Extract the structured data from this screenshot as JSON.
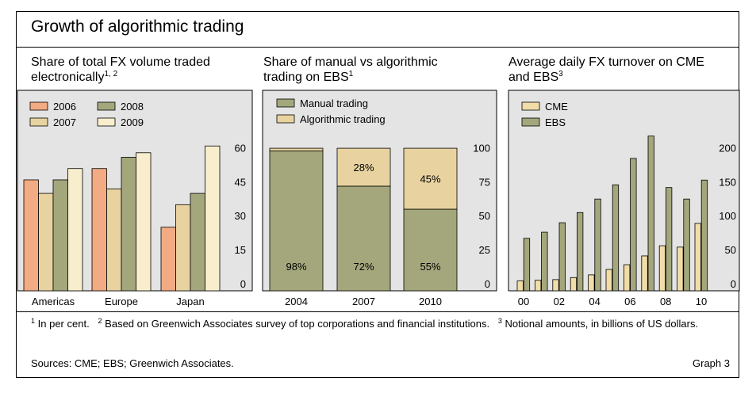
{
  "title": "Growth of algorithmic trading",
  "colors": {
    "c2006": "#f2ab82",
    "c2007": "#e8d3a0",
    "c2008": "#a4a77c",
    "c2009": "#f8eecd",
    "manual": "#a4a77c",
    "algo": "#e8d3a0",
    "cme": "#f0dda8",
    "ebs": "#a4a77c",
    "panel_bg": "#e4e4e4"
  },
  "panels": [
    {
      "title": "Share of total FX volume traded electronically",
      "title_line1": "Share of total FX volume traded",
      "title_line2": "electronically",
      "sup": "1, 2"
    },
    {
      "title": "Share of manual vs algorithmic trading on EBS",
      "title_line1": "Share of manual vs algorithmic",
      "title_line2": "trading on EBS",
      "sup": "1"
    },
    {
      "title": "Average daily FX turnover on CME and EBS",
      "title_line1": "Average daily FX turnover on CME",
      "title_line2": "and EBS",
      "sup": "3"
    }
  ],
  "chart_data": [
    {
      "type": "bar",
      "title": "Share of total FX volume traded electronically",
      "categories": [
        "Americas",
        "Europe",
        "Japan"
      ],
      "series": [
        {
          "name": "2006",
          "values": [
            46,
            51,
            25
          ]
        },
        {
          "name": "2007",
          "values": [
            40,
            42,
            35
          ]
        },
        {
          "name": "2008",
          "values": [
            46,
            56,
            40
          ]
        },
        {
          "name": "2009",
          "values": [
            51,
            58,
            61
          ]
        }
      ],
      "yticks": [
        0,
        15,
        30,
        45,
        60
      ],
      "ylim": [
        0,
        66
      ],
      "grid": false,
      "legend": "top-left"
    },
    {
      "type": "bar",
      "stacked": true,
      "title": "Share of manual vs algorithmic trading on EBS",
      "categories": [
        "2004",
        "2007",
        "2010"
      ],
      "series": [
        {
          "name": "Manual trading",
          "values": [
            98,
            72,
            55
          ],
          "labels": [
            "98%",
            "72%",
            "55%"
          ]
        },
        {
          "name": "Algorithmic trading",
          "values": [
            2,
            28,
            45
          ],
          "labels": [
            "",
            "28%",
            "45%"
          ]
        }
      ],
      "yticks": [
        0,
        25,
        50,
        75,
        100
      ],
      "ylim": [
        0,
        110
      ],
      "grid": false,
      "legend": "top-left"
    },
    {
      "type": "bar",
      "title": "Average daily FX turnover on CME and EBS",
      "categories": [
        "00",
        "01",
        "02",
        "03",
        "04",
        "05",
        "06",
        "07",
        "08",
        "09",
        "10"
      ],
      "xtick_labels": [
        "00",
        "02",
        "04",
        "06",
        "08",
        "10"
      ],
      "series": [
        {
          "name": "CME",
          "values": [
            4,
            5,
            6,
            9,
            13,
            21,
            28,
            41,
            56,
            54,
            89
          ]
        },
        {
          "name": "EBS",
          "values": [
            67,
            76,
            90,
            105,
            125,
            146,
            185,
            218,
            142,
            125,
            153
          ]
        }
      ],
      "yticks": [
        0,
        50,
        100,
        150,
        200
      ],
      "ylim": [
        0,
        220
      ],
      "grid": false,
      "legend": "top-left"
    }
  ],
  "footnote": {
    "n1_mark": "1",
    "n1_text": "In per cent.",
    "n2_mark": "2",
    "n2_text": "Based on Greenwich Associates survey of top corporations and financial institutions.",
    "n3_mark": "3",
    "n3_text": "Notional amounts, in billions of US dollars."
  },
  "sources": "Sources: CME; EBS; Greenwich Associates.",
  "graph_number": "Graph 3"
}
